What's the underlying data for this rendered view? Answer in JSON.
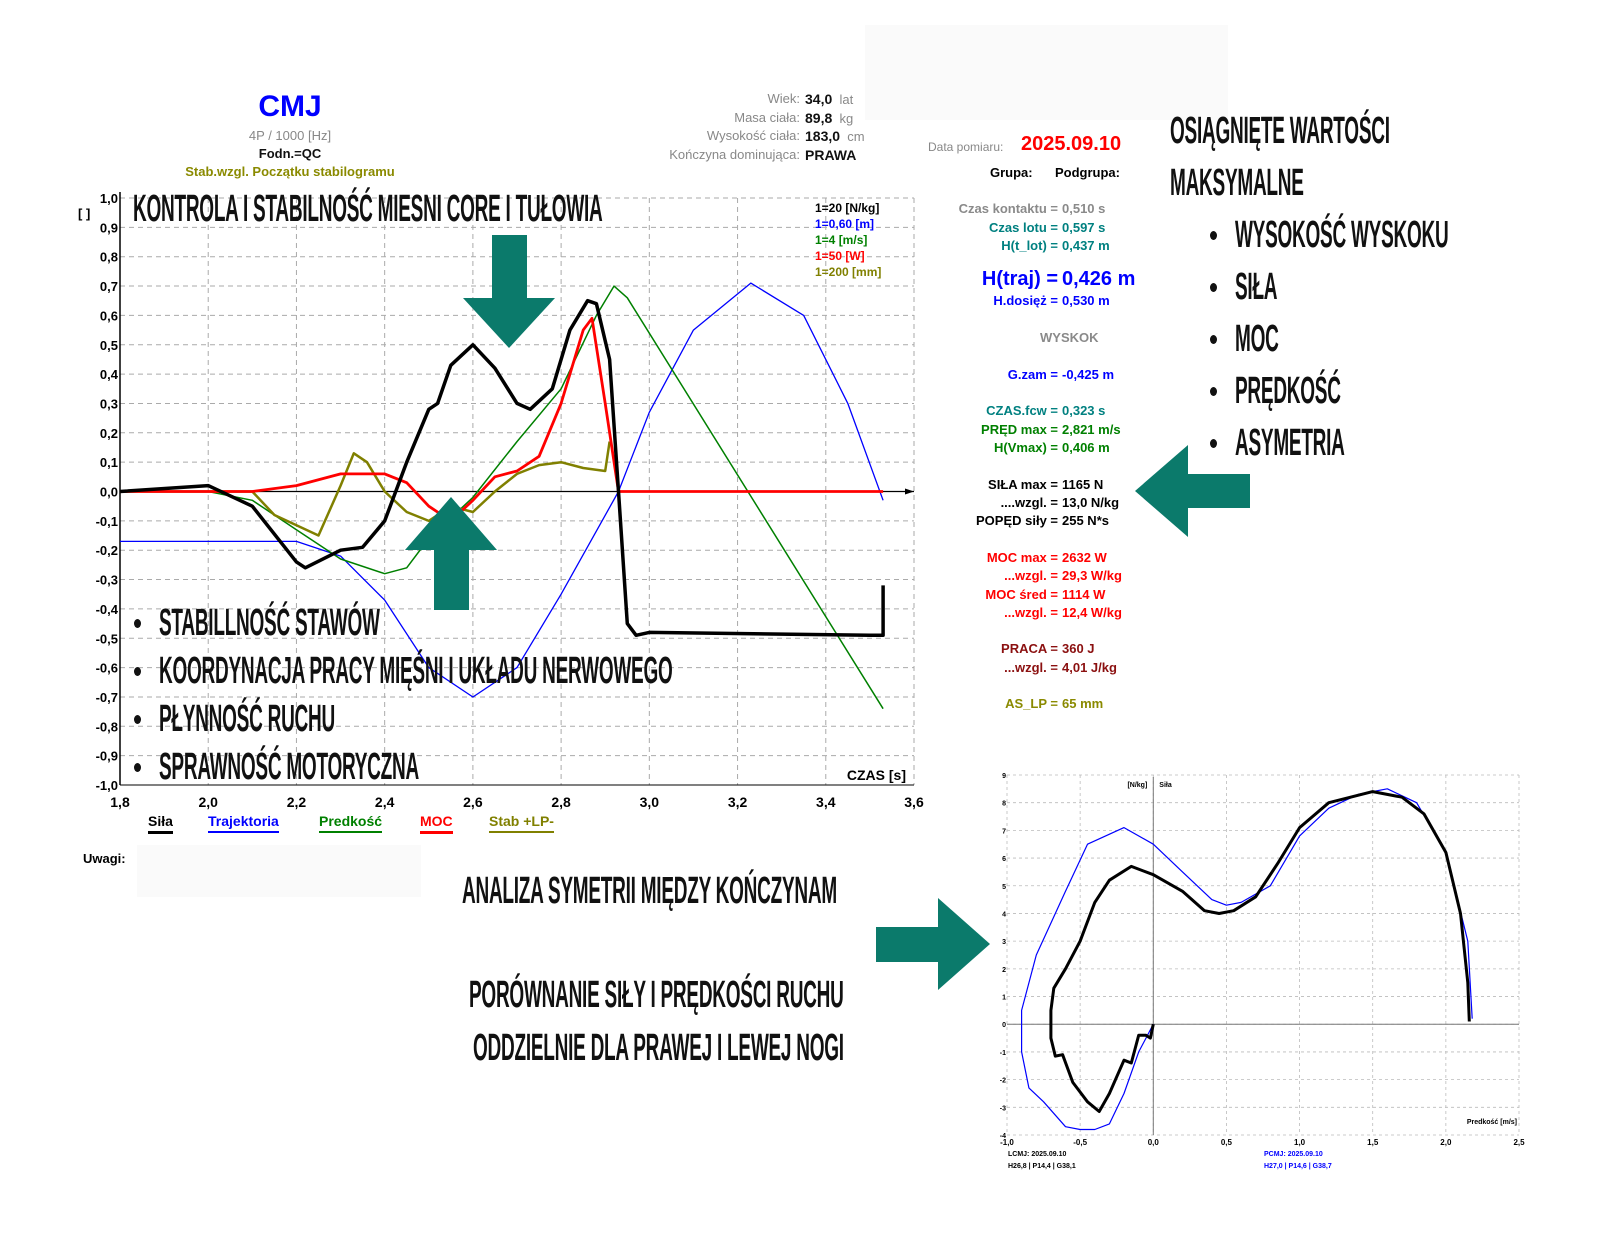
{
  "header": {
    "title": "CMJ",
    "subtitle": "4P / 1000 [Hz]",
    "fodn": "Fodn.=QC",
    "stab": "Stab.wzgl. Początku stabilogramu"
  },
  "person": [
    {
      "label": "Wiek:",
      "value": "34,0",
      "unit": "lat"
    },
    {
      "label": "Masa ciała:",
      "value": "89,8",
      "unit": "kg"
    },
    {
      "label": "Wysokość ciała:",
      "value": "183,0",
      "unit": "cm"
    },
    {
      "label": "Kończyna  dominująca:",
      "value": "PRAWA",
      "unit": ""
    }
  ],
  "measurement": {
    "date_label": "Data pomiaru:",
    "date": "2025.09.10",
    "group_label": "Grupa:",
    "subgroup_label": "Podgrupa:"
  },
  "stats": [
    {
      "label": "Czas kontaktu =",
      "value": "0,510 s",
      "color": "#8a8a8a"
    },
    {
      "label": "Czas lotu =",
      "value": "0,597 s",
      "color": "#008080"
    },
    {
      "label": "H(t_lot) =",
      "value": "0,437 m",
      "color": "#008080"
    },
    {
      "label": "H(traj) =",
      "value": "0,426 m",
      "color": "#0000ff",
      "big": true
    },
    {
      "label": "H.dosięż =",
      "value": "0,530 m",
      "color": "#0000ff"
    },
    {
      "label": "",
      "value": "WYSKOK",
      "color": "#8a8a8a",
      "center": true
    },
    {
      "label": "G.zam =",
      "value": "-0,425 m",
      "color": "#0000ff"
    },
    {
      "label": "CZAS.fcw =",
      "value": "0,323 s",
      "color": "#008080"
    },
    {
      "label": "PRĘD max =",
      "value": "2,821 m/s",
      "color": "#008000"
    },
    {
      "label": "H(Vmax) =",
      "value": "0,406 m",
      "color": "#008000"
    },
    {
      "label": "SIŁA max =",
      "value": "1165 N",
      "color": "#000000"
    },
    {
      "label": "....wzgl. =",
      "value": "13,0 N/kg",
      "color": "#000000"
    },
    {
      "label": "POPĘD siły =",
      "value": "255 N*s",
      "color": "#000000"
    },
    {
      "label": "MOC max =",
      "value": "2632 W",
      "color": "#ff0000"
    },
    {
      "label": "...wzgl. =",
      "value": "29,3 W/kg",
      "color": "#ff0000"
    },
    {
      "label": "MOC śred =",
      "value": "1114 W",
      "color": "#ff0000"
    },
    {
      "label": "...wzgl. =",
      "value": "12,4 W/kg",
      "color": "#ff0000"
    },
    {
      "label": "PRACA =",
      "value": "360 J",
      "color": "#8b1010"
    },
    {
      "label": "...wzgl. =",
      "value": "4,01 J/kg",
      "color": "#8b1010"
    },
    {
      "label": "AS_LP =",
      "value": "65 mm",
      "color": "#8a8a00"
    }
  ],
  "headlines": {
    "core": "KONTROLA I STABILNOŚĆ MIESNI CORE I TUŁOWIA",
    "max_title_1": "OSIĄGNIĘTE WARTOŚCI",
    "max_title_2": "MAKSYMALNE",
    "max_items": [
      "WYSOKOŚĆ WYSKOKU",
      "SIŁA",
      "MOC",
      "PRĘDKOŚĆ",
      "ASYMETRIA"
    ],
    "left_items": [
      "STABILLNOŚĆ STAWÓW",
      "KOORDYNACJA PRACY MIĘŚNI I UKŁADU NERWOWEGO",
      "PŁYNNOŚĆ RUCHU",
      "SPRAWNOŚĆ MOTORYCZNA"
    ],
    "symmetry": "ANALIZA SYMETRII MIĘDZY KOŃCZYNAM",
    "compare_1": "PORÓWNANIE SIŁY I PRĘDKOŚCI RUCHU",
    "compare_2": "ODDZIELNIE DLA PRAWEJ I LEWEJ NOGI"
  },
  "notes_label": "Uwagi:",
  "colors": {
    "arrow": "#0b7a6b"
  },
  "chart_data": [
    {
      "type": "line",
      "title": "CMJ",
      "xlabel": "CZAS  [s]",
      "ylabel": "[ ]",
      "xlim": [
        1.8,
        3.6
      ],
      "ylim": [
        -1.0,
        1.0
      ],
      "xticks": [
        "1,8",
        "2,0",
        "2,2",
        "2,4",
        "2,6",
        "2,8",
        "3,0",
        "3,2",
        "3,4",
        "3,6"
      ],
      "yticks": [
        "1,0",
        "0,9",
        "0,8",
        "0,7",
        "0,6",
        "0,5",
        "0,4",
        "0,3",
        "0,2",
        "0,1",
        "0,0",
        "-0,1",
        "-0,2",
        "-0,3",
        "-0,4",
        "-0,5",
        "-0,6",
        "-0,7",
        "-0,8",
        "-0,9",
        "-1,0"
      ],
      "grid": true,
      "scales": [
        {
          "text": "1=20 [N/kg]",
          "color": "#000000"
        },
        {
          "text": "1=0,60 [m]",
          "color": "#0000ff"
        },
        {
          "text": "1=4 [m/s]",
          "color": "#008000"
        },
        {
          "text": "1=50 [W]",
          "color": "#ff0000"
        },
        {
          "text": "1=200 [mm]",
          "color": "#808000"
        }
      ],
      "legend_position": "bottom",
      "series": [
        {
          "name": "Siła",
          "color": "#000000",
          "width": 3.5,
          "x": [
            1.8,
            2.0,
            2.1,
            2.2,
            2.22,
            2.3,
            2.35,
            2.4,
            2.45,
            2.5,
            2.52,
            2.55,
            2.6,
            2.65,
            2.7,
            2.73,
            2.78,
            2.82,
            2.86,
            2.88,
            2.91,
            2.93,
            2.95,
            2.97,
            3.0,
            3.5,
            3.53,
            3.53
          ],
          "y": [
            0,
            0.02,
            -0.05,
            -0.24,
            -0.26,
            -0.2,
            -0.19,
            -0.1,
            0.1,
            0.28,
            0.3,
            0.43,
            0.5,
            0.42,
            0.3,
            0.28,
            0.35,
            0.55,
            0.65,
            0.64,
            0.45,
            0.0,
            -0.45,
            -0.49,
            -0.48,
            -0.49,
            -0.49,
            -0.32
          ]
        },
        {
          "name": "Trajektoria",
          "color": "#0000ff",
          "width": 1.3,
          "x": [
            1.8,
            2.2,
            2.3,
            2.4,
            2.5,
            2.6,
            2.7,
            2.8,
            2.93,
            3.0,
            3.1,
            3.23,
            3.35,
            3.45,
            3.53
          ],
          "y": [
            -0.17,
            -0.17,
            -0.22,
            -0.37,
            -0.6,
            -0.7,
            -0.6,
            -0.35,
            0.0,
            0.27,
            0.55,
            0.71,
            0.6,
            0.3,
            -0.03
          ]
        },
        {
          "name": "Predkość",
          "color": "#008000",
          "width": 1.5,
          "x": [
            1.8,
            2.0,
            2.1,
            2.2,
            2.3,
            2.4,
            2.45,
            2.5,
            2.6,
            2.7,
            2.8,
            2.88,
            2.92,
            2.95,
            3.53
          ],
          "y": [
            0,
            0,
            -0.03,
            -0.13,
            -0.23,
            -0.28,
            -0.26,
            -0.16,
            -0.02,
            0.17,
            0.35,
            0.6,
            0.7,
            0.66,
            -0.74
          ]
        },
        {
          "name": "MOC",
          "color": "#ff0000",
          "width": 2.8,
          "x": [
            1.8,
            2.1,
            2.2,
            2.3,
            2.4,
            2.45,
            2.5,
            2.55,
            2.6,
            2.65,
            2.7,
            2.75,
            2.8,
            2.85,
            2.87,
            2.9,
            2.93,
            3.53
          ],
          "y": [
            0,
            0,
            0.02,
            0.06,
            0.06,
            0.03,
            -0.05,
            -0.1,
            -0.03,
            0.05,
            0.07,
            0.12,
            0.3,
            0.55,
            0.59,
            0.3,
            0,
            0
          ]
        },
        {
          "name": "Stab +LP-",
          "color": "#808000",
          "width": 2.5,
          "x": [
            1.8,
            2.1,
            2.15,
            2.25,
            2.3,
            2.33,
            2.36,
            2.4,
            2.45,
            2.5,
            2.55,
            2.6,
            2.65,
            2.7,
            2.75,
            2.8,
            2.85,
            2.9,
            2.91
          ],
          "y": [
            0,
            0,
            -0.08,
            -0.15,
            0.02,
            0.13,
            0.1,
            0.0,
            -0.07,
            -0.1,
            -0.05,
            -0.07,
            0.0,
            0.06,
            0.09,
            0.1,
            0.08,
            0.07,
            0.17
          ]
        }
      ]
    },
    {
      "type": "line",
      "title": "Siła",
      "ylabel": "[N/kg]",
      "xlabel": "Predkość [m/s]",
      "xlim": [
        -1.0,
        2.5
      ],
      "ylim": [
        -4,
        9
      ],
      "xticks": [
        "-1,0",
        "-0,5",
        "0,0",
        "0,5",
        "1,0",
        "1,5",
        "2,0",
        "2,5"
      ],
      "yticks": [
        "9",
        "8",
        "7",
        "6",
        "5",
        "4",
        "3",
        "2",
        "1",
        "0",
        "-1",
        "-2",
        "-3",
        "-4"
      ],
      "grid": true,
      "captions": [
        {
          "line1": "LCMJ: 2025.09.10",
          "line2": "H26,8 | P14,4 | G38,1",
          "color": "#000000"
        },
        {
          "line1": "PCMJ: 2025.09.10",
          "line2": "H27,0 | P14,6 | G38,7",
          "color": "#0000ff"
        }
      ],
      "series": [
        {
          "name": "LCMJ",
          "color": "#000000",
          "width": 3,
          "x": [
            0,
            -0.02,
            -0.05,
            -0.1,
            -0.15,
            -0.2,
            -0.3,
            -0.37,
            -0.45,
            -0.55,
            -0.62,
            -0.67,
            -0.7,
            -0.7,
            -0.68,
            -0.6,
            -0.5,
            -0.4,
            -0.3,
            -0.15,
            0,
            0.2,
            0.35,
            0.45,
            0.55,
            0.7,
            0.85,
            1.0,
            1.2,
            1.5,
            1.7,
            1.85,
            2.0,
            2.1,
            2.15,
            2.16
          ],
          "y": [
            0,
            -0.5,
            -0.4,
            -0.4,
            -1.4,
            -1.3,
            -2.5,
            -3.15,
            -2.8,
            -2.1,
            -1.1,
            -1.15,
            -0.5,
            0.5,
            1.3,
            2.0,
            3.0,
            4.4,
            5.2,
            5.7,
            5.4,
            4.8,
            4.1,
            4.0,
            4.1,
            4.6,
            5.8,
            7.1,
            8.0,
            8.4,
            8.2,
            7.6,
            6.2,
            4.0,
            1.5,
            0.1
          ]
        },
        {
          "name": "PCMJ",
          "color": "#0000ff",
          "width": 1.2,
          "x": [
            0,
            -0.05,
            -0.1,
            -0.2,
            -0.3,
            -0.4,
            -0.5,
            -0.6,
            -0.75,
            -0.85,
            -0.9,
            -0.9,
            -0.8,
            -0.6,
            -0.45,
            -0.2,
            0,
            0.2,
            0.4,
            0.5,
            0.6,
            0.8,
            1.0,
            1.2,
            1.4,
            1.6,
            1.8,
            2.0,
            2.15,
            2.18
          ],
          "y": [
            0,
            -0.5,
            -1.0,
            -2.5,
            -3.6,
            -3.8,
            -3.8,
            -3.7,
            -2.8,
            -2.3,
            -1.0,
            0.5,
            2.5,
            4.8,
            6.5,
            7.1,
            6.5,
            5.5,
            4.5,
            4.3,
            4.4,
            5.0,
            6.8,
            7.8,
            8.3,
            8.5,
            8.0,
            6.2,
            3.0,
            0.2
          ]
        }
      ]
    }
  ]
}
